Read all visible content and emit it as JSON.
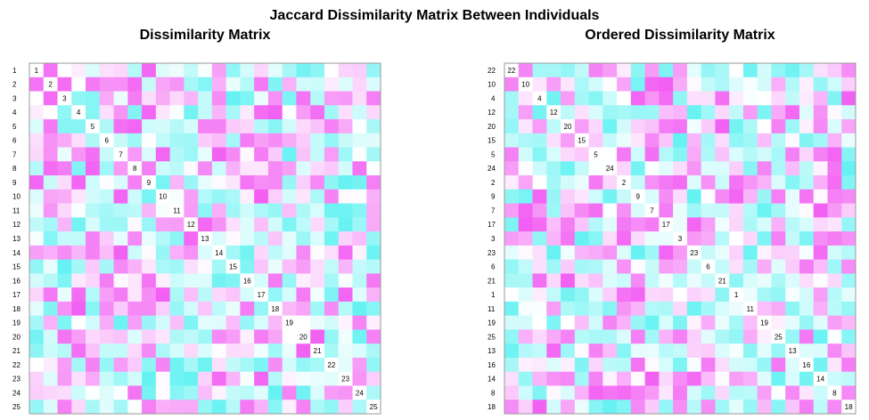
{
  "title": "Jaccard Dissimilarity Matrix Between Individuals",
  "colors": {
    "low": "#66f2f2",
    "mid": "#ffffff",
    "high": "#f25ff2",
    "border": "#999999"
  },
  "chart_data": [
    {
      "type": "heatmap",
      "title": "Dissimilarity Matrix",
      "order": [
        "1",
        "2",
        "3",
        "4",
        "5",
        "6",
        "7",
        "8",
        "9",
        "10",
        "11",
        "12",
        "13",
        "14",
        "15",
        "16",
        "17",
        "18",
        "19",
        "20",
        "21",
        "22",
        "23",
        "24",
        "25"
      ],
      "diagonal_labels": true,
      "values": []
    },
    {
      "type": "heatmap",
      "title": "Ordered Dissimilarity Matrix",
      "order": [
        "22",
        "10",
        "4",
        "12",
        "20",
        "15",
        "5",
        "24",
        "2",
        "9",
        "7",
        "17",
        "3",
        "23",
        "6",
        "21",
        "1",
        "11",
        "19",
        "25",
        "13",
        "16",
        "14",
        "8",
        "18"
      ],
      "diagonal_labels": true,
      "values": []
    }
  ]
}
